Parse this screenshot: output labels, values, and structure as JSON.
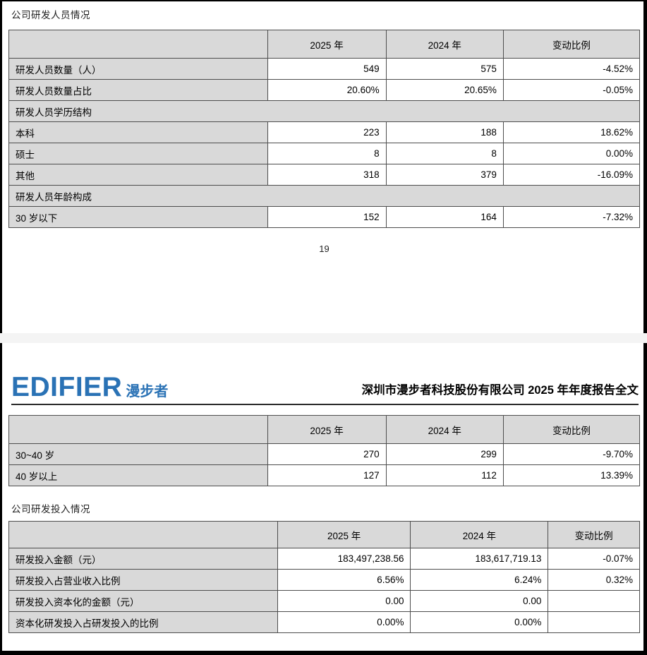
{
  "page1": {
    "section_title": "公司研发人员情况",
    "page_number": "19"
  },
  "page2_header": {
    "logo_en": "EDIFIER",
    "logo_cn": "漫步者",
    "report_title": "深圳市漫步者科技股份有限公司 2025 年年度报告全文"
  },
  "page2": {
    "section_title": "公司研发投入情况"
  },
  "colors": {
    "cell_gray": "#d9d9d9",
    "border_dark": "#4d4d4d",
    "logo_blue": "#2a72b5",
    "page_gap_gray": "#f4f4f4"
  },
  "tables": {
    "personnel": {
      "columns": [
        "",
        "2025 年",
        "2024 年",
        "变动比例"
      ],
      "rows": [
        {
          "type": "data",
          "label": "研发人员数量（人）",
          "values": [
            "549",
            "575",
            "-4.52%"
          ]
        },
        {
          "type": "data",
          "label": "研发人员数量占比",
          "values": [
            "20.60%",
            "20.65%",
            "-0.05%"
          ]
        },
        {
          "type": "section",
          "label": "研发人员学历结构"
        },
        {
          "type": "data",
          "label": "本科",
          "values": [
            "223",
            "188",
            "18.62%"
          ]
        },
        {
          "type": "data",
          "label": "硕士",
          "values": [
            "8",
            "8",
            "0.00%"
          ]
        },
        {
          "type": "data",
          "label": "其他",
          "values": [
            "318",
            "379",
            "-16.09%"
          ]
        },
        {
          "type": "section",
          "label": "研发人员年龄构成"
        },
        {
          "type": "data",
          "label": "30 岁以下",
          "values": [
            "152",
            "164",
            "-7.32%"
          ]
        }
      ]
    },
    "personnel_cont": {
      "columns": [
        "",
        "2025 年",
        "2024 年",
        "变动比例"
      ],
      "rows": [
        {
          "type": "data",
          "label": "30~40 岁",
          "values": [
            "270",
            "299",
            "-9.70%"
          ]
        },
        {
          "type": "data",
          "label": "40 岁以上",
          "values": [
            "127",
            "112",
            "13.39%"
          ]
        }
      ]
    },
    "investment": {
      "columns": [
        "",
        "2025 年",
        "2024 年",
        "变动比例"
      ],
      "rows": [
        {
          "type": "data",
          "label": "研发投入金额（元）",
          "values": [
            "183,497,238.56",
            "183,617,719.13",
            "-0.07%"
          ]
        },
        {
          "type": "data",
          "label": "研发投入占营业收入比例",
          "values": [
            "6.56%",
            "6.24%",
            "0.32%"
          ]
        },
        {
          "type": "data",
          "label": "研发投入资本化的金额（元）",
          "values": [
            "0.00",
            "0.00",
            ""
          ]
        },
        {
          "type": "data",
          "label": "资本化研发投入占研发投入的比例",
          "values": [
            "0.00%",
            "0.00%",
            ""
          ]
        }
      ]
    }
  }
}
